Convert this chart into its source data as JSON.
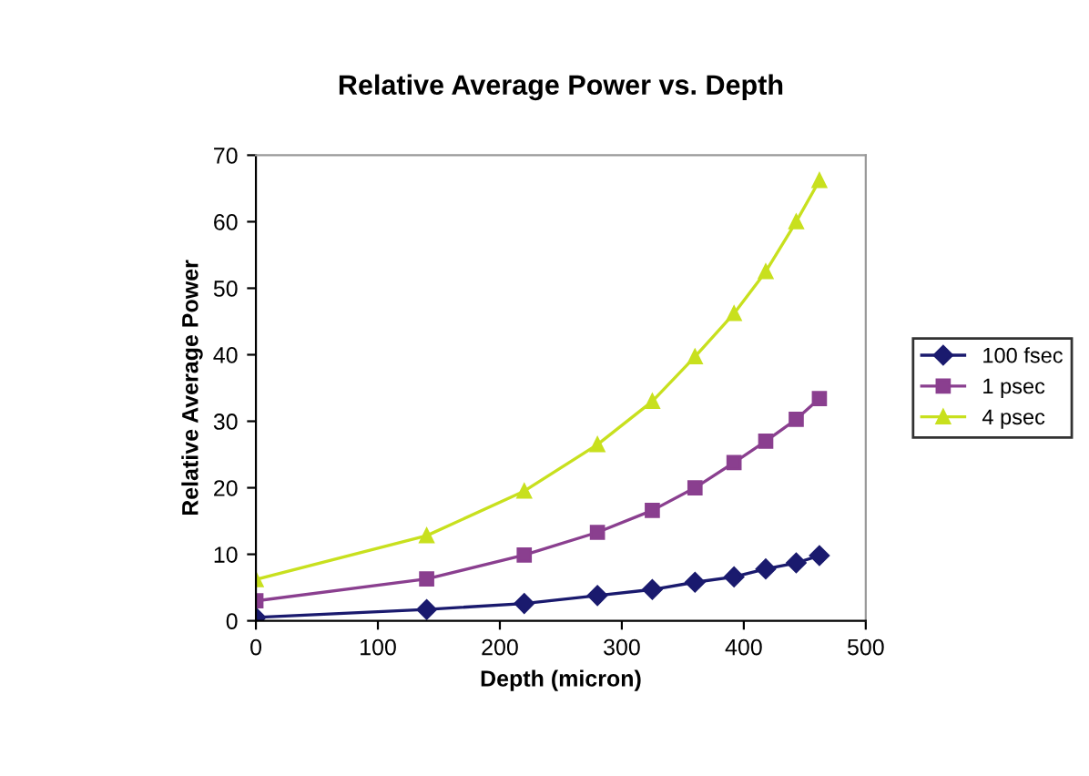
{
  "chart_data": {
    "type": "line",
    "title": "Relative Average Power vs. Depth",
    "xlabel": "Depth (micron)",
    "ylabel": "Relative Average Power",
    "x": [
      0,
      140,
      220,
      280,
      325,
      360,
      392,
      418,
      443,
      462
    ],
    "series": [
      {
        "name": "100 fsec",
        "color": "#1a1a6e",
        "marker": "diamond",
        "values": [
          0.5,
          1.7,
          2.6,
          3.8,
          4.7,
          5.8,
          6.6,
          7.8,
          8.7,
          9.8
        ]
      },
      {
        "name": "1 psec",
        "color": "#8a3f8f",
        "marker": "square",
        "values": [
          3,
          6.3,
          9.9,
          13.3,
          16.6,
          20,
          23.8,
          27,
          30.3,
          33.4
        ]
      },
      {
        "name": "4 psec",
        "color": "#c8e01e",
        "marker": "triangle",
        "values": [
          6.2,
          12.8,
          19.5,
          26.5,
          33,
          39.7,
          46.2,
          52.5,
          60,
          66.2
        ]
      }
    ],
    "xlim": [
      0,
      500
    ],
    "xticks": [
      0,
      100,
      200,
      300,
      400,
      500
    ],
    "ylim": [
      0,
      70
    ],
    "yticks": [
      0,
      10,
      20,
      30,
      40,
      50,
      60,
      70
    ],
    "grid": false,
    "legend": "right",
    "line_style": "solid"
  }
}
